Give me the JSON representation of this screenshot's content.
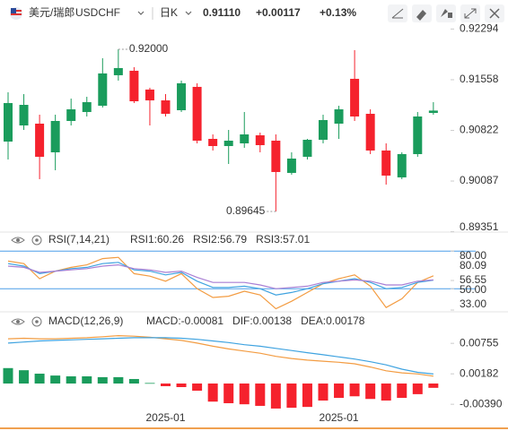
{
  "header": {
    "name": "美元/瑞郎",
    "symbol": "USDCHF",
    "period": "日K",
    "price": "0.91110",
    "change": "+0.00117",
    "change_pct": "+0.13%"
  },
  "chart_data": [
    {
      "type": "candlestick",
      "categories": [
        null,
        null,
        null,
        null,
        null,
        null,
        null,
        null,
        null,
        null,
        "2025-01",
        null,
        null,
        null,
        null,
        null,
        null,
        null,
        null,
        null,
        null,
        "2025-01",
        null,
        null,
        null,
        null,
        null,
        null
      ],
      "open": [
        0.9066,
        0.90894,
        0.9092,
        0.90504,
        0.90959,
        0.91089,
        0.9118,
        0.91623,
        0.91688,
        0.91415,
        0.91258,
        0.91115,
        0.91454,
        0.90699,
        0.90595,
        0.90634,
        0.90751,
        0.90673,
        0.90205,
        0.90439,
        0.90686,
        0.9092,
        0.91571,
        0.91063,
        0.9053,
        0.9014,
        0.90478,
        0.91076
      ],
      "high": [
        0.91376,
        0.91349,
        0.9105,
        0.9105,
        0.91284,
        0.9131,
        0.9187,
        0.92,
        0.9174,
        0.91441,
        0.91349,
        0.91545,
        0.91506,
        0.90764,
        0.90829,
        0.91089,
        0.9079,
        0.90764,
        0.90504,
        0.90699,
        0.9105,
        0.9118,
        0.91987,
        0.91128,
        0.90634,
        0.90504,
        0.91089,
        0.91232
      ],
      "low": [
        0.904,
        0.90829,
        0.90114,
        0.90244,
        0.90894,
        0.91024,
        0.91154,
        0.91545,
        0.91219,
        0.90894,
        0.91024,
        0.91089,
        0.90634,
        0.9053,
        0.90335,
        0.90569,
        0.90504,
        0.89645,
        0.90179,
        0.904,
        0.90634,
        0.90699,
        0.90959,
        0.90478,
        0.90035,
        0.90114,
        0.90439,
        0.9105
      ],
      "close": [
        0.91219,
        0.91193,
        0.90439,
        0.90959,
        0.91128,
        0.91232,
        0.91649,
        0.91727,
        0.91245,
        0.91258,
        0.91063,
        0.91506,
        0.90673,
        0.90595,
        0.90673,
        0.90764,
        0.90608,
        0.90218,
        0.90413,
        0.90686,
        0.90972,
        0.91128,
        0.91024,
        0.9053,
        0.90166,
        0.90478,
        0.91024,
        0.9111
      ],
      "high_labels": [
        null,
        null,
        null,
        null,
        null,
        null,
        null,
        "0.92000",
        null,
        null,
        null,
        null,
        null,
        null,
        null,
        null,
        null,
        null,
        null,
        null,
        null,
        null,
        null,
        null,
        null,
        null,
        null,
        null
      ],
      "low_labels": [
        null,
        null,
        null,
        null,
        null,
        null,
        null,
        null,
        null,
        null,
        null,
        null,
        null,
        null,
        null,
        null,
        null,
        "0.89645",
        null,
        null,
        null,
        null,
        null,
        null,
        null,
        null,
        null,
        null
      ],
      "up_color": "#1a9c5c",
      "down_color": "#f5222d",
      "ylim": [
        0.89333,
        0.92429
      ],
      "yticks": [
        0.92294,
        0.91558,
        0.90822,
        0.90087,
        0.89351
      ]
    },
    {
      "type": "line",
      "title": "RSI(7,14,21)",
      "series": [
        {
          "name": "RSI1:60.26",
          "color": "#f39c42",
          "values": [
            72,
            70,
            58,
            64,
            67,
            69,
            74,
            75,
            62,
            60,
            56,
            62,
            50,
            43,
            44,
            48,
            45,
            34,
            40,
            47,
            54,
            58,
            61,
            52,
            35,
            42,
            55,
            60.26
          ]
        },
        {
          "name": "RSI2:56.79",
          "color": "#3fa3e0",
          "values": [
            70,
            68,
            62,
            64,
            66,
            67,
            70,
            71,
            65,
            64,
            61,
            63,
            56,
            51,
            51,
            52,
            50,
            45,
            47,
            50,
            54,
            56,
            58,
            55,
            50,
            51,
            55,
            56.79
          ]
        },
        {
          "name": "RSI3:57.01",
          "color": "#a97fd4",
          "values": [
            68,
            67,
            63,
            64,
            65,
            66,
            68,
            69,
            66,
            65,
            63,
            64,
            59,
            55,
            55,
            55,
            53,
            50,
            51,
            52,
            55,
            56,
            57,
            56,
            53,
            53,
            56,
            57.01
          ]
        }
      ],
      "ylim": [
        33,
        83
      ],
      "yticks": [
        {
          "value": 80,
          "label": "80.00"
        },
        80.09,
        56.55,
        {
          "value": 50,
          "label": "50.00"
        },
        {
          "value": 33,
          "label": "33.00"
        }
      ],
      "reference_lines": [
        80,
        50
      ],
      "reference_color": "#4a9ee8"
    },
    {
      "type": "macd",
      "title": "MACD(12,26,9)",
      "series": [
        {
          "name": "MACD:-0.00081",
          "color": "#a97fd4",
          "kind": "bar",
          "values": [
            0.0029,
            0.0025,
            0.00185,
            0.0015,
            0.00135,
            0.00135,
            0.0012,
            0.0012,
            0.00085,
            0.0001,
            -0.0005,
            -0.00067,
            -0.00135,
            -0.0034,
            -0.0037,
            -0.0039,
            -0.0042,
            -0.0047,
            -0.00455,
            -0.0044,
            -0.0032,
            -0.0027,
            -0.0024,
            -0.0029,
            -0.0032,
            -0.0027,
            -0.002,
            -0.00081
          ]
        },
        {
          "name": "DIF:0.00138",
          "color": "#f39c42",
          "kind": "line",
          "values": [
            0.0084,
            0.0085,
            0.0084,
            0.0084,
            0.0085,
            0.0086,
            0.0088,
            0.009,
            0.0089,
            0.0087,
            0.0084,
            0.0081,
            0.0076,
            0.007,
            0.0065,
            0.0061,
            0.0057,
            0.0051,
            0.0047,
            0.0044,
            0.0042,
            0.004,
            0.0037,
            0.0031,
            0.0024,
            0.002,
            0.0018,
            0.00138
          ]
        },
        {
          "name": "DEA:0.00178",
          "color": "#3fa3e0",
          "kind": "line",
          "values": [
            0.0076,
            0.0078,
            0.008,
            0.0081,
            0.0082,
            0.0083,
            0.0084,
            0.0085,
            0.0086,
            0.0086,
            0.0086,
            0.0085,
            0.0083,
            0.008,
            0.0077,
            0.0073,
            0.007,
            0.0066,
            0.0062,
            0.0058,
            0.0054,
            0.005,
            0.0046,
            0.0041,
            0.0035,
            0.0027,
            0.0021,
            0.00178
          ]
        }
      ],
      "up_color": "#1a9c5c",
      "down_color": "#f5222d",
      "ylim": [
        -0.00505,
        0.00977
      ],
      "yticks": [
        0.00755,
        0.00182,
        {
          "value": -0.0039,
          "label": "-0.00390"
        }
      ]
    }
  ]
}
